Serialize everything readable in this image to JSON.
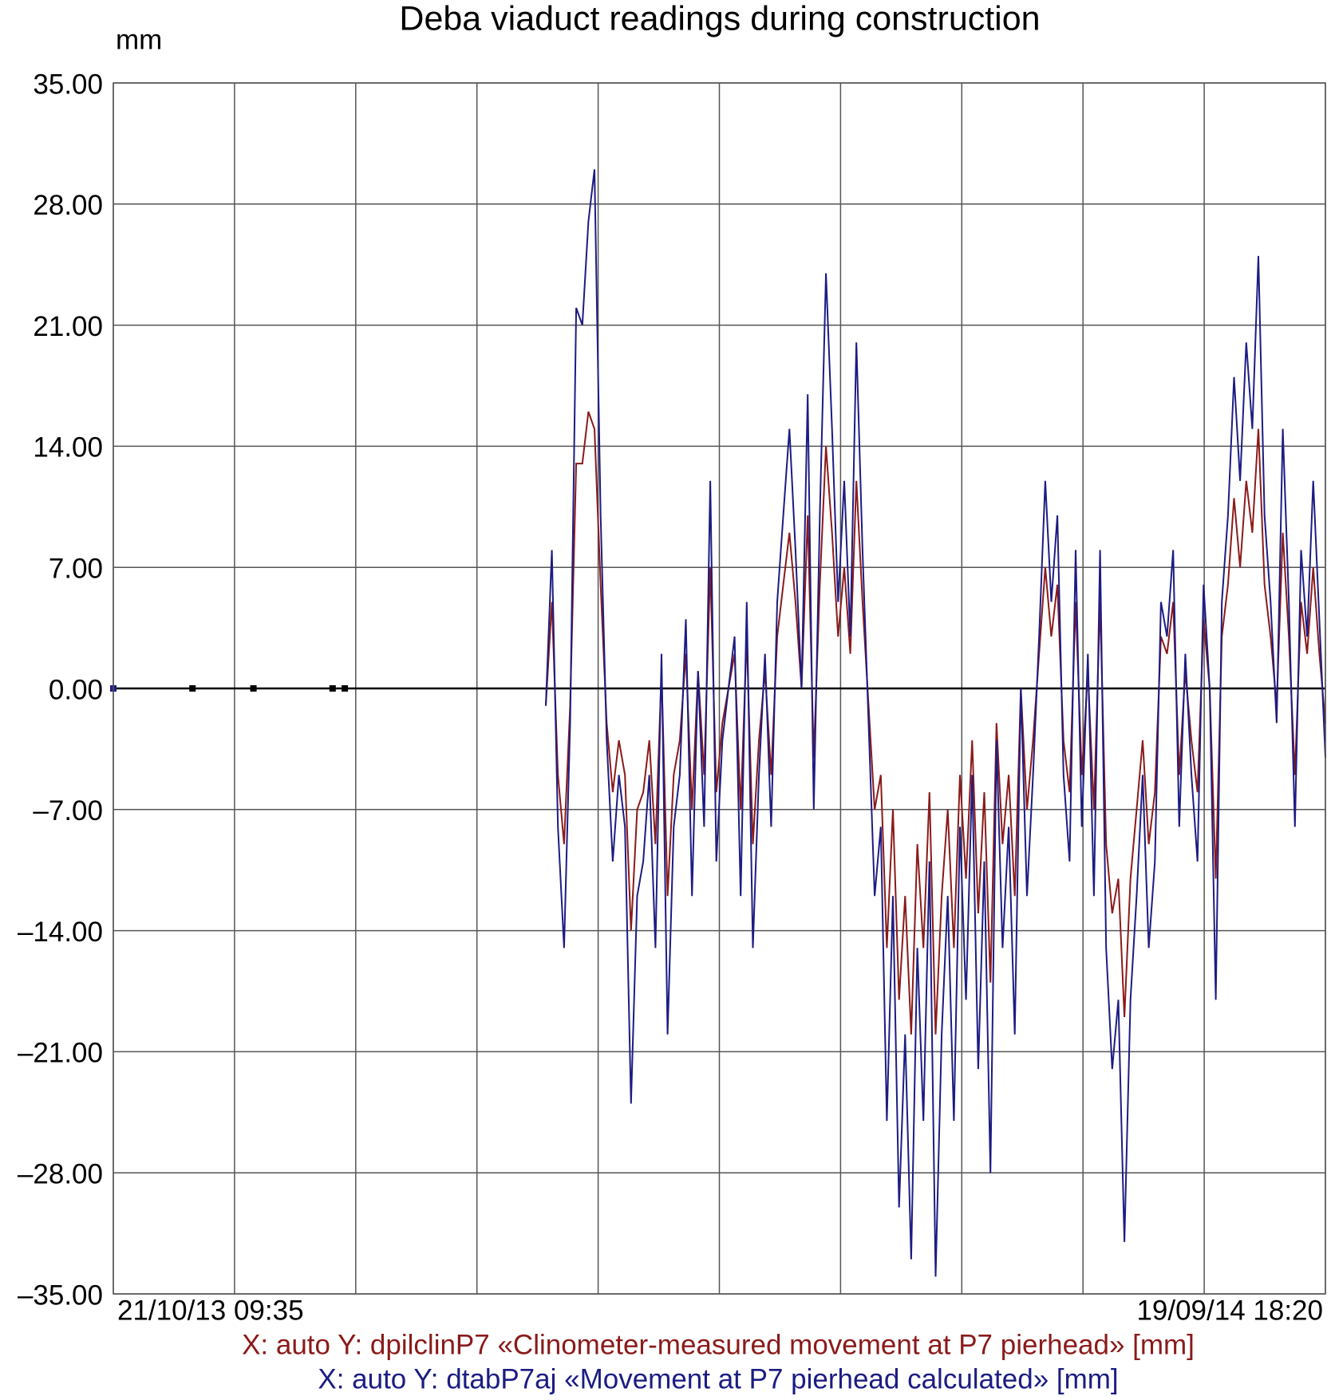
{
  "chart_data": {
    "type": "line",
    "title": "Deba viaduct readings during construction",
    "y_label": "mm",
    "xlim": [
      "21/10/13 09:35",
      "19/09/14 18:20"
    ],
    "ylim": [
      -35,
      35
    ],
    "yticks": [
      {
        "value": 35,
        "label": "35.00"
      },
      {
        "value": 28,
        "label": "28.00"
      },
      {
        "value": 21,
        "label": "21.00"
      },
      {
        "value": 14,
        "label": "14.00"
      },
      {
        "value": 7,
        "label": "7.00"
      },
      {
        "value": 0,
        "label": "0.00"
      },
      {
        "value": -7,
        "label": "–7.00"
      },
      {
        "value": -14,
        "label": "–14.00"
      },
      {
        "value": -21,
        "label": "–21.00"
      },
      {
        "value": -28,
        "label": "–28.00"
      },
      {
        "value": -35,
        "label": "–35.00"
      }
    ],
    "grid": true,
    "series": [
      {
        "name": "X: auto Y: dpilclinP7 «Clinometer-measured movement at P7 pierhead» [mm]",
        "color": "#8b1a1a",
        "values": [
          null,
          null,
          null,
          null,
          null,
          null,
          null,
          null,
          null,
          null,
          null,
          null,
          null,
          null,
          null,
          null,
          null,
          null,
          null,
          null,
          null,
          null,
          null,
          null,
          null,
          null,
          null,
          null,
          null,
          null,
          null,
          null,
          null,
          null,
          null,
          null,
          null,
          null,
          null,
          null,
          null,
          null,
          null,
          null,
          null,
          null,
          null,
          null,
          null,
          null,
          null,
          null,
          null,
          null,
          null,
          null,
          null,
          null,
          null,
          null,
          null,
          null,
          null,
          null,
          null,
          null,
          null,
          null,
          null,
          null,
          null,
          -1,
          5,
          -5,
          -9,
          -1,
          13,
          13,
          16,
          15,
          6,
          -2,
          -6,
          -3,
          -5,
          -14,
          -7,
          -6,
          -3,
          -9,
          1,
          -12,
          -5,
          -3,
          2,
          -7,
          1,
          -5,
          7,
          -6,
          -2,
          0,
          2,
          -7,
          3,
          -9,
          -3,
          1,
          -5,
          3,
          6,
          9,
          5,
          0,
          10,
          -4,
          6,
          14,
          9,
          3,
          7,
          2,
          12,
          5,
          -1,
          -7,
          -5,
          -15,
          -7,
          -18,
          -12,
          -20,
          -9,
          -15,
          -6,
          -20,
          -12,
          -7,
          -15,
          -5,
          -11,
          -3,
          -13,
          -6,
          -17,
          -2,
          -9,
          -5,
          -12,
          0,
          -7,
          -3,
          2,
          7,
          3,
          6,
          -3,
          -6,
          5,
          -5,
          1,
          -7,
          5,
          -9,
          -13,
          -11,
          -19,
          -11,
          -7,
          -3,
          -9,
          -6,
          3,
          2,
          5,
          -5,
          1,
          -3,
          -6,
          4,
          0,
          -11,
          3,
          6,
          11,
          7,
          12,
          9,
          15,
          6,
          3,
          -1,
          9,
          3,
          -5,
          5,
          2,
          7,
          2,
          -2
        ]
      },
      {
        "name": "X: auto Y: dtabP7aj «Movement at P7 pierhead calculated» [mm]",
        "color": "#1c1c84",
        "values": [
          0,
          null,
          null,
          null,
          null,
          null,
          null,
          null,
          null,
          null,
          null,
          null,
          null,
          0,
          null,
          null,
          null,
          null,
          null,
          null,
          null,
          null,
          null,
          0,
          null,
          null,
          null,
          null,
          null,
          null,
          null,
          null,
          null,
          null,
          null,
          null,
          0,
          null,
          0,
          null,
          null,
          null,
          null,
          null,
          null,
          null,
          null,
          null,
          null,
          null,
          null,
          null,
          null,
          null,
          null,
          null,
          null,
          null,
          null,
          null,
          null,
          null,
          null,
          null,
          null,
          null,
          null,
          null,
          null,
          null,
          null,
          -1,
          8,
          -8,
          -15,
          -2,
          22,
          21,
          27,
          30,
          10,
          -3,
          -10,
          -5,
          -8,
          -24,
          -12,
          -10,
          -5,
          -15,
          2,
          -20,
          -8,
          -5,
          4,
          -12,
          1,
          -8,
          12,
          -10,
          -3,
          0,
          3,
          -12,
          5,
          -15,
          -5,
          2,
          -8,
          5,
          10,
          15,
          8,
          0,
          17,
          -7,
          10,
          24,
          15,
          5,
          12,
          3,
          20,
          8,
          -2,
          -12,
          -8,
          -25,
          -12,
          -30,
          -20,
          -33,
          -15,
          -25,
          -10,
          -34,
          -20,
          -12,
          -25,
          -8,
          -18,
          -5,
          -22,
          -10,
          -28,
          -3,
          -15,
          -8,
          -20,
          0,
          -12,
          -5,
          3,
          12,
          5,
          10,
          -5,
          -10,
          8,
          -8,
          2,
          -12,
          8,
          -15,
          -22,
          -18,
          -32,
          -18,
          -12,
          -5,
          -15,
          -10,
          5,
          3,
          8,
          -8,
          2,
          -5,
          -10,
          6,
          0,
          -18,
          5,
          10,
          18,
          12,
          20,
          15,
          25,
          10,
          5,
          -2,
          15,
          5,
          -8,
          8,
          3,
          12,
          4,
          -4
        ]
      }
    ]
  }
}
